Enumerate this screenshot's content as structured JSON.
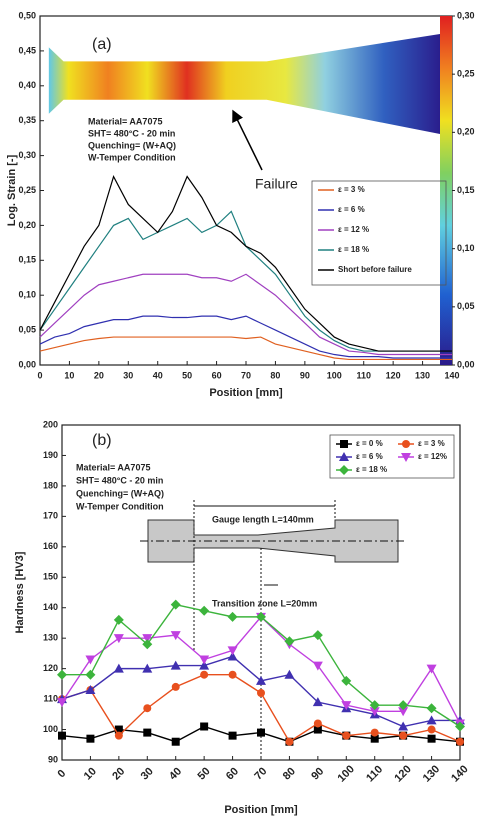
{
  "chart_data": [
    {
      "type": "line",
      "xlabel": "Position [mm]",
      "ylabel": "Log. Strain [-]",
      "annotations": [
        "(a)",
        "Material= AA7075",
        "SHT= 480°C - 20 min",
        "Quenching= (W+AQ)",
        "W-Temper Condition",
        "Failure"
      ],
      "x": [
        0,
        5,
        10,
        15,
        20,
        25,
        30,
        35,
        40,
        45,
        50,
        55,
        60,
        65,
        70,
        75,
        80,
        85,
        90,
        95,
        100,
        105,
        110,
        115,
        120,
        125,
        130,
        135,
        140
      ],
      "xlim": [
        0,
        140
      ],
      "xticks": [
        0,
        10,
        20,
        30,
        40,
        50,
        60,
        70,
        80,
        90,
        100,
        110,
        120,
        130,
        140
      ],
      "ylim": [
        0,
        0.5
      ],
      "yticks": [
        {
          "value": 0,
          "label": "0,00"
        },
        {
          "value": 0.05,
          "label": "0,05"
        },
        {
          "value": 0.1,
          "label": "0,10"
        },
        {
          "value": 0.15,
          "label": "0,15"
        },
        {
          "value": 0.2,
          "label": "0,20"
        },
        {
          "value": 0.25,
          "label": "0,25"
        },
        {
          "value": 0.3,
          "label": "0,30"
        },
        {
          "value": 0.35,
          "label": "0,35"
        },
        {
          "value": 0.4,
          "label": "0,40"
        },
        {
          "value": 0.45,
          "label": "0,45"
        },
        {
          "value": 0.5,
          "label": "0,50"
        }
      ],
      "y2lim": [
        0,
        0.3
      ],
      "y2ticks": [
        {
          "value": 0,
          "label": "0,00"
        },
        {
          "value": 0.05,
          "label": "0,05"
        },
        {
          "value": 0.1,
          "label": "0,10"
        },
        {
          "value": 0.15,
          "label": "0,15"
        },
        {
          "value": 0.2,
          "label": "0,20"
        },
        {
          "value": 0.25,
          "label": "0,25"
        },
        {
          "value": 0.3,
          "label": "0,30"
        }
      ],
      "series": [
        {
          "name": "ε = 3 %",
          "color": "#e06020",
          "values": [
            0.02,
            0.025,
            0.03,
            0.035,
            0.038,
            0.04,
            0.04,
            0.04,
            0.04,
            0.04,
            0.04,
            0.04,
            0.04,
            0.04,
            0.038,
            0.04,
            0.03,
            0.025,
            0.02,
            0.015,
            0.01,
            0.008,
            0.008,
            0.008,
            0.008,
            0.008,
            0.008,
            0.008,
            0.008
          ]
        },
        {
          "name": "ε = 6 %",
          "color": "#3030b0",
          "values": [
            0.03,
            0.04,
            0.045,
            0.055,
            0.06,
            0.065,
            0.065,
            0.07,
            0.07,
            0.068,
            0.068,
            0.07,
            0.07,
            0.065,
            0.07,
            0.06,
            0.05,
            0.04,
            0.03,
            0.02,
            0.015,
            0.012,
            0.012,
            0.012,
            0.01,
            0.01,
            0.01,
            0.01,
            0.01
          ]
        },
        {
          "name": "ε = 12 %",
          "color": "#a040c0",
          "values": [
            0.04,
            0.06,
            0.08,
            0.1,
            0.115,
            0.12,
            0.125,
            0.13,
            0.13,
            0.13,
            0.13,
            0.125,
            0.125,
            0.12,
            0.13,
            0.115,
            0.1,
            0.08,
            0.06,
            0.04,
            0.03,
            0.02,
            0.018,
            0.015,
            0.015,
            0.015,
            0.015,
            0.015,
            0.015
          ]
        },
        {
          "name": "ε = 18 %",
          "color": "#208080",
          "values": [
            0.05,
            0.08,
            0.11,
            0.14,
            0.17,
            0.2,
            0.21,
            0.18,
            0.19,
            0.2,
            0.21,
            0.19,
            0.2,
            0.22,
            0.17,
            0.15,
            0.13,
            0.1,
            0.07,
            0.05,
            0.035,
            0.025,
            0.02,
            0.02,
            0.02,
            0.02,
            0.02,
            0.02,
            0.02
          ]
        },
        {
          "name": "Short before failure",
          "color": "#000000",
          "values": [
            0.05,
            0.09,
            0.13,
            0.17,
            0.2,
            0.27,
            0.23,
            0.21,
            0.19,
            0.22,
            0.27,
            0.24,
            0.2,
            0.19,
            0.17,
            0.16,
            0.14,
            0.11,
            0.08,
            0.06,
            0.04,
            0.03,
            0.025,
            0.02,
            0.02,
            0.02,
            0.02,
            0.02,
            0.02
          ]
        }
      ]
    },
    {
      "type": "line",
      "xlabel": "Position [mm]",
      "ylabel": "Hardness [HV3]",
      "annotations": [
        "(b)",
        "Material= AA7075",
        "SHT= 480°C - 20 min",
        "Quenching= (W+AQ)",
        "W-Temper Condition",
        "Gauge length L=140mm",
        "Transition zone L=20mm"
      ],
      "x": [
        0,
        10,
        20,
        30,
        40,
        50,
        60,
        70,
        80,
        90,
        100,
        110,
        120,
        130,
        140
      ],
      "xlim": [
        0,
        140
      ],
      "xticks": [
        0,
        10,
        20,
        30,
        40,
        50,
        60,
        70,
        80,
        90,
        100,
        110,
        120,
        130,
        140
      ],
      "ylim": [
        90,
        200
      ],
      "yticks": [
        90,
        100,
        110,
        120,
        130,
        140,
        150,
        160,
        170,
        180,
        190,
        200
      ],
      "series": [
        {
          "name": "ε = 0 %",
          "color": "#000000",
          "marker": "square",
          "values": [
            98,
            97,
            100,
            99,
            96,
            101,
            98,
            99,
            96,
            100,
            98,
            97,
            98,
            97,
            96
          ]
        },
        {
          "name": "ε = 3 %",
          "color": "#e8501e",
          "marker": "circle",
          "values": [
            110,
            113,
            98,
            107,
            114,
            118,
            118,
            112,
            96,
            102,
            98,
            99,
            98,
            100,
            96
          ]
        },
        {
          "name": "ε = 6 %",
          "color": "#4030b0",
          "marker": "triangle",
          "values": [
            110,
            113,
            120,
            120,
            121,
            121,
            124,
            116,
            118,
            109,
            107,
            105,
            101,
            103,
            103
          ]
        },
        {
          "name": "ε = 12%",
          "color": "#c040e0",
          "marker": "triangle-down",
          "values": [
            109,
            123,
            130,
            130,
            131,
            123,
            126,
            137,
            128,
            121,
            108,
            106,
            106,
            120,
            102
          ]
        },
        {
          "name": "ε = 18 %",
          "color": "#3cb43c",
          "marker": "diamond",
          "values": [
            118,
            118,
            136,
            128,
            141,
            139,
            137,
            137,
            129,
            131,
            116,
            108,
            108,
            107,
            101
          ]
        }
      ]
    }
  ]
}
